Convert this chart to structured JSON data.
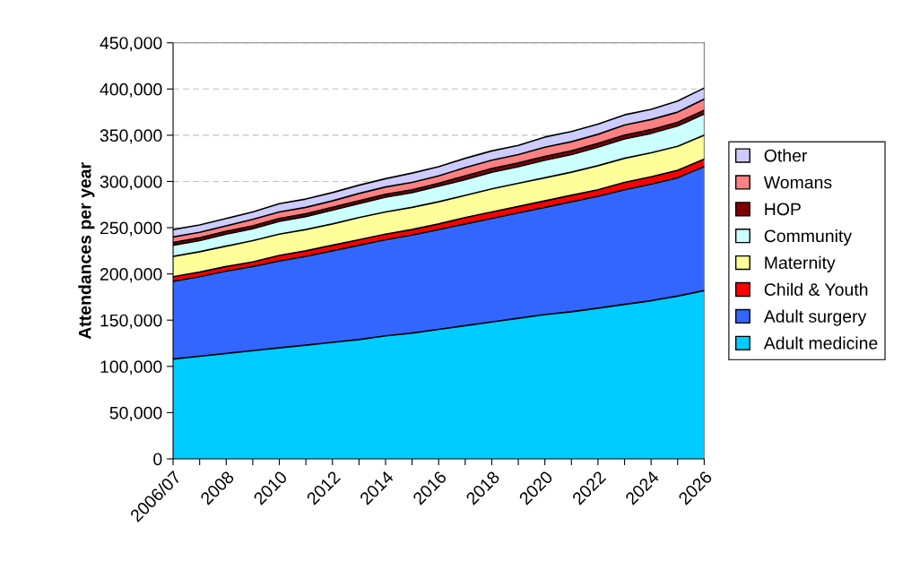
{
  "chart_data": {
    "type": "area",
    "stacked": true,
    "ylabel": "Attendances per year",
    "categories": [
      "2006/07",
      null,
      "2008",
      null,
      "2010",
      null,
      "2012",
      null,
      "2014",
      null,
      "2016",
      null,
      "2018",
      null,
      "2020",
      null,
      "2022",
      null,
      "2024",
      null,
      "2026"
    ],
    "series": [
      {
        "name": "Adult medicine",
        "color": "#00ccff",
        "values": [
          108000,
          111000,
          114000,
          117000,
          120000,
          123000,
          126000,
          129000,
          133000,
          136000,
          140000,
          144000,
          148000,
          152000,
          156000,
          159000,
          163000,
          167000,
          171000,
          176000,
          182000
        ]
      },
      {
        "name": "Adult surgery",
        "color": "#3366ff",
        "values": [
          84000,
          86000,
          89000,
          91000,
          94000,
          96000,
          99000,
          102000,
          104000,
          106000,
          108000,
          110000,
          112000,
          114000,
          116000,
          119000,
          121000,
          124000,
          126000,
          128000,
          134000
        ]
      },
      {
        "name": "Child & Youth",
        "color": "#ff0000",
        "values": [
          5000,
          5000,
          5000,
          5000,
          6000,
          6000,
          6000,
          6000,
          6000,
          6000,
          6000,
          7000,
          7000,
          7000,
          7000,
          7000,
          7000,
          8000,
          8000,
          8000,
          8000
        ]
      },
      {
        "name": "Maternity",
        "color": "#ffff99",
        "values": [
          22000,
          22000,
          22000,
          23000,
          23000,
          23000,
          23000,
          24000,
          24000,
          24000,
          24000,
          24000,
          25000,
          25000,
          25000,
          25000,
          26000,
          26000,
          26000,
          26000,
          26000
        ]
      },
      {
        "name": "Community",
        "color": "#ccffff",
        "values": [
          12000,
          12000,
          13000,
          13000,
          14000,
          14000,
          15000,
          15000,
          16000,
          16000,
          17000,
          17000,
          18000,
          18000,
          19000,
          19000,
          20000,
          21000,
          21000,
          22000,
          23000
        ]
      },
      {
        "name": "HOP",
        "color": "#800000",
        "values": [
          3000,
          3000,
          3000,
          3000,
          3000,
          3000,
          3000,
          3000,
          3000,
          3000,
          3000,
          4000,
          4000,
          4000,
          4000,
          4000,
          4000,
          4000,
          4000,
          4000,
          4000
        ]
      },
      {
        "name": "Womans",
        "color": "#ff8080",
        "values": [
          6000,
          6000,
          6000,
          7000,
          7000,
          7000,
          7000,
          8000,
          8000,
          8000,
          8000,
          9000,
          9000,
          9000,
          10000,
          10000,
          10000,
          11000,
          11000,
          11000,
          12000
        ]
      },
      {
        "name": "Other",
        "color": "#ccccff",
        "values": [
          8000,
          8000,
          8000,
          8000,
          9000,
          9000,
          9000,
          9000,
          9000,
          10000,
          10000,
          10000,
          10000,
          10000,
          11000,
          11000,
          11000,
          11000,
          11000,
          12000,
          12000
        ]
      }
    ],
    "ylim": [
      0,
      450000
    ],
    "yticks": [
      0,
      {
        "value": 50000,
        "label": "50,000"
      },
      {
        "value": 100000,
        "label": "100,000"
      },
      {
        "value": 150000,
        "label": "150,000"
      },
      {
        "value": 200000,
        "label": "200,000"
      },
      {
        "value": 250000,
        "label": "250,000"
      },
      {
        "value": 300000,
        "label": "300,000"
      },
      {
        "value": 350000,
        "label": "350,000"
      },
      {
        "value": 400000,
        "label": "400,000"
      },
      {
        "value": 450000,
        "label": "450,000"
      }
    ],
    "grid": "y",
    "legend": "right"
  }
}
